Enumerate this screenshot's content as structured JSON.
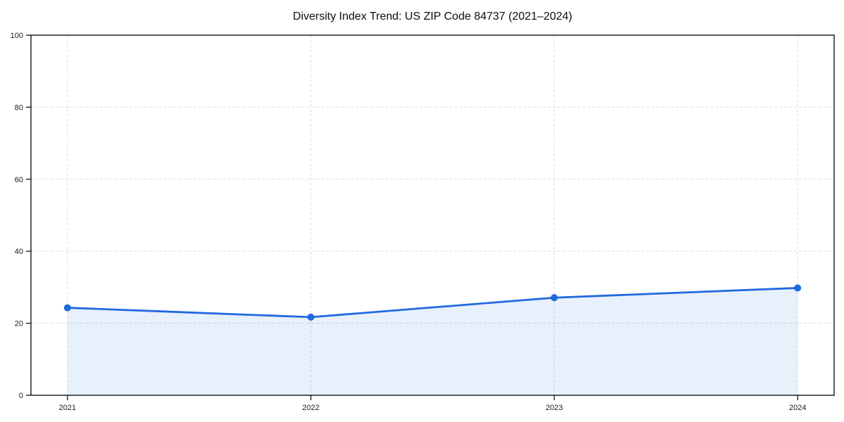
{
  "chart_data": {
    "type": "area",
    "title": "Diversity Index Trend: US ZIP Code 84737 (2021–2024)",
    "series": [
      {
        "name": "Diversity Index",
        "x": [
          2021,
          2022,
          2023,
          2024
        ],
        "values": [
          24.3,
          21.7,
          27.1,
          29.8
        ]
      }
    ],
    "xlabel": "",
    "ylabel": "",
    "xlim": [
      2020.85,
      2024.15
    ],
    "ylim": [
      0,
      100
    ],
    "xticks": [
      {
        "value": 2021,
        "label": "2021"
      },
      {
        "value": 2022,
        "label": "2022"
      },
      {
        "value": 2023,
        "label": "2023"
      },
      {
        "value": 2024,
        "label": "2024"
      }
    ],
    "yticks": [
      {
        "value": 0,
        "label": "0"
      },
      {
        "value": 20,
        "label": "20"
      },
      {
        "value": 40,
        "label": "40"
      },
      {
        "value": 60,
        "label": "60"
      },
      {
        "value": 80,
        "label": "80"
      },
      {
        "value": 100,
        "label": "100"
      }
    ],
    "grid": true,
    "grid_style": "dashed",
    "legend": "none",
    "colors": {
      "line": "#2069e0",
      "marker": "#2069e0",
      "fill": "rgba(32, 105, 224, 0.10)",
      "grid": "#dcdcdc",
      "axis": "#000000",
      "text": "#1a1a1a",
      "background": "#ffffff"
    }
  }
}
